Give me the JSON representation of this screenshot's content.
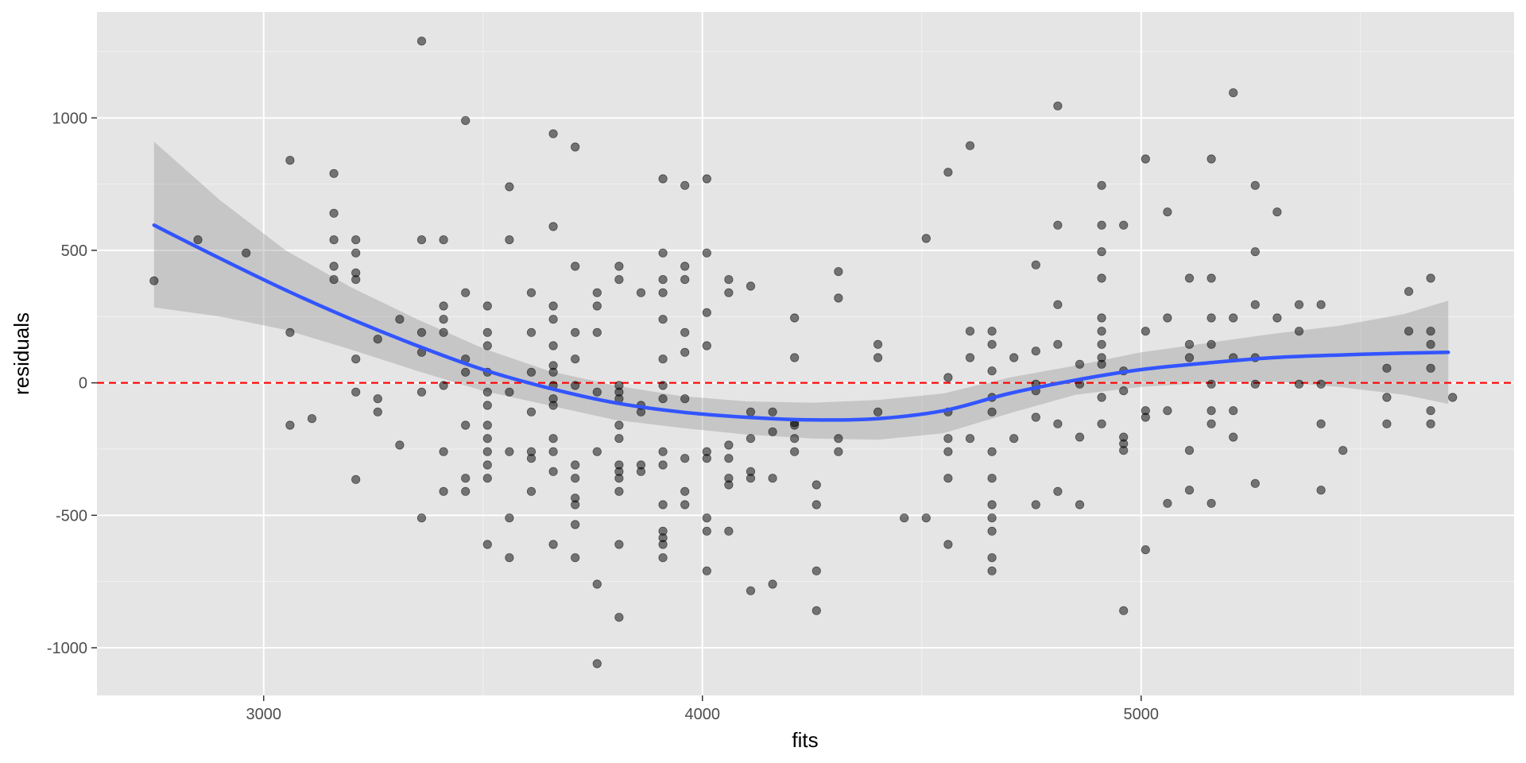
{
  "chart_data": {
    "type": "scatter",
    "xlabel": "fits",
    "ylabel": "residuals",
    "xlim": [
      2620,
      5850
    ],
    "ylim": [
      -1180,
      1400
    ],
    "x_ticks": [
      3000,
      4000,
      5000
    ],
    "x_tick_labels": [
      "3000",
      "4000",
      "5000"
    ],
    "y_ticks": [
      -1000,
      -500,
      0,
      500,
      1000
    ],
    "y_tick_labels": [
      "-1000",
      "-500",
      "0",
      "500",
      "1000"
    ],
    "grid": true,
    "reference_line": {
      "y": 0,
      "color": "#ff0000",
      "style": "dashed"
    },
    "points": [
      [
        2750,
        385
      ],
      [
        2850,
        540
      ],
      [
        2960,
        490
      ],
      [
        3060,
        840
      ],
      [
        3060,
        190
      ],
      [
        3060,
        -160
      ],
      [
        3110,
        -135
      ],
      [
        3160,
        790
      ],
      [
        3160,
        640
      ],
      [
        3160,
        540
      ],
      [
        3160,
        440
      ],
      [
        3160,
        390
      ],
      [
        3210,
        540
      ],
      [
        3210,
        490
      ],
      [
        3210,
        415
      ],
      [
        3210,
        390
      ],
      [
        3210,
        90
      ],
      [
        3210,
        -35
      ],
      [
        3210,
        -365
      ],
      [
        3260,
        165
      ],
      [
        3260,
        -60
      ],
      [
        3260,
        -110
      ],
      [
        3310,
        240
      ],
      [
        3310,
        -235
      ],
      [
        3360,
        1290
      ],
      [
        3360,
        540
      ],
      [
        3360,
        190
      ],
      [
        3360,
        115
      ],
      [
        3360,
        -35
      ],
      [
        3360,
        -510
      ],
      [
        3410,
        540
      ],
      [
        3410,
        290
      ],
      [
        3410,
        240
      ],
      [
        3410,
        190
      ],
      [
        3410,
        -10
      ],
      [
        3410,
        -260
      ],
      [
        3410,
        -410
      ],
      [
        3460,
        990
      ],
      [
        3460,
        340
      ],
      [
        3460,
        90
      ],
      [
        3460,
        40
      ],
      [
        3460,
        -160
      ],
      [
        3460,
        -360
      ],
      [
        3460,
        -410
      ],
      [
        3510,
        290
      ],
      [
        3510,
        190
      ],
      [
        3510,
        140
      ],
      [
        3510,
        40
      ],
      [
        3510,
        -35
      ],
      [
        3510,
        -85
      ],
      [
        3510,
        -160
      ],
      [
        3510,
        -210
      ],
      [
        3510,
        -260
      ],
      [
        3510,
        -310
      ],
      [
        3510,
        -360
      ],
      [
        3510,
        -610
      ],
      [
        3560,
        740
      ],
      [
        3560,
        540
      ],
      [
        3560,
        -35
      ],
      [
        3560,
        -260
      ],
      [
        3560,
        -510
      ],
      [
        3560,
        -660
      ],
      [
        3610,
        340
      ],
      [
        3610,
        190
      ],
      [
        3610,
        40
      ],
      [
        3610,
        -110
      ],
      [
        3610,
        -260
      ],
      [
        3610,
        -285
      ],
      [
        3610,
        -410
      ],
      [
        3660,
        940
      ],
      [
        3660,
        590
      ],
      [
        3660,
        290
      ],
      [
        3660,
        240
      ],
      [
        3660,
        140
      ],
      [
        3660,
        65
      ],
      [
        3660,
        40
      ],
      [
        3660,
        -10
      ],
      [
        3660,
        -60
      ],
      [
        3660,
        -85
      ],
      [
        3660,
        -210
      ],
      [
        3660,
        -260
      ],
      [
        3660,
        -335
      ],
      [
        3660,
        -610
      ],
      [
        3710,
        890
      ],
      [
        3710,
        440
      ],
      [
        3710,
        190
      ],
      [
        3710,
        90
      ],
      [
        3710,
        -10
      ],
      [
        3710,
        -310
      ],
      [
        3710,
        -360
      ],
      [
        3710,
        -435
      ],
      [
        3710,
        -460
      ],
      [
        3710,
        -535
      ],
      [
        3710,
        -660
      ],
      [
        3760,
        340
      ],
      [
        3760,
        290
      ],
      [
        3760,
        190
      ],
      [
        3760,
        -35
      ],
      [
        3760,
        -260
      ],
      [
        3760,
        -760
      ],
      [
        3760,
        -1060
      ],
      [
        3810,
        440
      ],
      [
        3810,
        390
      ],
      [
        3810,
        -10
      ],
      [
        3810,
        -35
      ],
      [
        3810,
        -60
      ],
      [
        3810,
        -160
      ],
      [
        3810,
        -210
      ],
      [
        3810,
        -310
      ],
      [
        3810,
        -335
      ],
      [
        3810,
        -360
      ],
      [
        3810,
        -410
      ],
      [
        3810,
        -610
      ],
      [
        3810,
        -885
      ],
      [
        3860,
        340
      ],
      [
        3860,
        -85
      ],
      [
        3860,
        -110
      ],
      [
        3860,
        -310
      ],
      [
        3860,
        -335
      ],
      [
        3910,
        770
      ],
      [
        3910,
        490
      ],
      [
        3910,
        390
      ],
      [
        3910,
        340
      ],
      [
        3910,
        240
      ],
      [
        3910,
        90
      ],
      [
        3910,
        -10
      ],
      [
        3910,
        -60
      ],
      [
        3910,
        -260
      ],
      [
        3910,
        -310
      ],
      [
        3910,
        -460
      ],
      [
        3910,
        -560
      ],
      [
        3910,
        -585
      ],
      [
        3910,
        -610
      ],
      [
        3910,
        -660
      ],
      [
        3960,
        745
      ],
      [
        3960,
        440
      ],
      [
        3960,
        390
      ],
      [
        3960,
        190
      ],
      [
        3960,
        115
      ],
      [
        3960,
        -60
      ],
      [
        3960,
        -285
      ],
      [
        3960,
        -410
      ],
      [
        3960,
        -460
      ],
      [
        4010,
        770
      ],
      [
        4010,
        490
      ],
      [
        4010,
        265
      ],
      [
        4010,
        140
      ],
      [
        4010,
        -260
      ],
      [
        4010,
        -285
      ],
      [
        4010,
        -510
      ],
      [
        4010,
        -560
      ],
      [
        4010,
        -710
      ],
      [
        4060,
        390
      ],
      [
        4060,
        340
      ],
      [
        4060,
        -235
      ],
      [
        4060,
        -285
      ],
      [
        4060,
        -360
      ],
      [
        4060,
        -385
      ],
      [
        4060,
        -560
      ],
      [
        4110,
        365
      ],
      [
        4110,
        -110
      ],
      [
        4110,
        -210
      ],
      [
        4110,
        -335
      ],
      [
        4110,
        -360
      ],
      [
        4110,
        -785
      ],
      [
        4160,
        -110
      ],
      [
        4160,
        -185
      ],
      [
        4160,
        -360
      ],
      [
        4160,
        -760
      ],
      [
        4210,
        245
      ],
      [
        4210,
        95
      ],
      [
        4210,
        -150
      ],
      [
        4210,
        -160
      ],
      [
        4210,
        -210
      ],
      [
        4210,
        -260
      ],
      [
        4260,
        -385
      ],
      [
        4260,
        -460
      ],
      [
        4260,
        -710
      ],
      [
        4260,
        -860
      ],
      [
        4310,
        420
      ],
      [
        4310,
        320
      ],
      [
        4310,
        -210
      ],
      [
        4310,
        -260
      ],
      [
        4400,
        145
      ],
      [
        4400,
        95
      ],
      [
        4400,
        -110
      ],
      [
        4460,
        -510
      ],
      [
        4510,
        545
      ],
      [
        4510,
        -510
      ],
      [
        4560,
        795
      ],
      [
        4560,
        20
      ],
      [
        4560,
        -110
      ],
      [
        4560,
        -210
      ],
      [
        4560,
        -260
      ],
      [
        4560,
        -360
      ],
      [
        4560,
        -610
      ],
      [
        4610,
        895
      ],
      [
        4610,
        195
      ],
      [
        4610,
        95
      ],
      [
        4610,
        -210
      ],
      [
        4660,
        195
      ],
      [
        4660,
        145
      ],
      [
        4660,
        45
      ],
      [
        4660,
        -55
      ],
      [
        4660,
        -110
      ],
      [
        4660,
        -260
      ],
      [
        4660,
        -360
      ],
      [
        4660,
        -460
      ],
      [
        4660,
        -510
      ],
      [
        4660,
        -560
      ],
      [
        4660,
        -660
      ],
      [
        4660,
        -710
      ],
      [
        4710,
        95
      ],
      [
        4710,
        -210
      ],
      [
        4760,
        445
      ],
      [
        4760,
        120
      ],
      [
        4760,
        -5
      ],
      [
        4760,
        -30
      ],
      [
        4760,
        -130
      ],
      [
        4760,
        -460
      ],
      [
        4810,
        1045
      ],
      [
        4810,
        595
      ],
      [
        4810,
        295
      ],
      [
        4810,
        145
      ],
      [
        4810,
        -155
      ],
      [
        4810,
        -410
      ],
      [
        4860,
        70
      ],
      [
        4860,
        -5
      ],
      [
        4860,
        -205
      ],
      [
        4860,
        -460
      ],
      [
        4910,
        745
      ],
      [
        4910,
        595
      ],
      [
        4910,
        495
      ],
      [
        4910,
        395
      ],
      [
        4910,
        245
      ],
      [
        4910,
        195
      ],
      [
        4910,
        145
      ],
      [
        4910,
        95
      ],
      [
        4910,
        70
      ],
      [
        4910,
        -55
      ],
      [
        4910,
        -155
      ],
      [
        4960,
        595
      ],
      [
        4960,
        45
      ],
      [
        4960,
        -30
      ],
      [
        4960,
        -205
      ],
      [
        4960,
        -230
      ],
      [
        4960,
        -255
      ],
      [
        4960,
        -860
      ],
      [
        5010,
        845
      ],
      [
        5010,
        195
      ],
      [
        5010,
        -105
      ],
      [
        5010,
        -130
      ],
      [
        5010,
        -630
      ],
      [
        5060,
        645
      ],
      [
        5060,
        245
      ],
      [
        5060,
        -105
      ],
      [
        5060,
        -455
      ],
      [
        5110,
        395
      ],
      [
        5110,
        145
      ],
      [
        5110,
        95
      ],
      [
        5110,
        -255
      ],
      [
        5110,
        -405
      ],
      [
        5160,
        845
      ],
      [
        5160,
        395
      ],
      [
        5160,
        245
      ],
      [
        5160,
        145
      ],
      [
        5160,
        -5
      ],
      [
        5160,
        -105
      ],
      [
        5160,
        -155
      ],
      [
        5160,
        -455
      ],
      [
        5210,
        1095
      ],
      [
        5210,
        245
      ],
      [
        5210,
        95
      ],
      [
        5210,
        -105
      ],
      [
        5210,
        -205
      ],
      [
        5260,
        745
      ],
      [
        5260,
        495
      ],
      [
        5260,
        295
      ],
      [
        5260,
        95
      ],
      [
        5260,
        -5
      ],
      [
        5260,
        -380
      ],
      [
        5310,
        645
      ],
      [
        5310,
        245
      ],
      [
        5360,
        295
      ],
      [
        5360,
        195
      ],
      [
        5360,
        -5
      ],
      [
        5410,
        295
      ],
      [
        5410,
        -5
      ],
      [
        5410,
        -155
      ],
      [
        5410,
        -405
      ],
      [
        5460,
        -255
      ],
      [
        5560,
        55
      ],
      [
        5560,
        -55
      ],
      [
        5560,
        -155
      ],
      [
        5610,
        345
      ],
      [
        5610,
        195
      ],
      [
        5660,
        395
      ],
      [
        5660,
        195
      ],
      [
        5660,
        145
      ],
      [
        5660,
        55
      ],
      [
        5660,
        -105
      ],
      [
        5660,
        -155
      ],
      [
        5710,
        -55
      ]
    ],
    "smooth_line": {
      "color": "#3355ff",
      "x": [
        2750,
        2900,
        3050,
        3200,
        3350,
        3500,
        3650,
        3800,
        3950,
        4100,
        4250,
        4400,
        4550,
        4700,
        4850,
        5000,
        5150,
        5300,
        5450,
        5600,
        5700
      ],
      "y": [
        595,
        470,
        350,
        240,
        140,
        50,
        -20,
        -75,
        -110,
        -130,
        -140,
        -135,
        -105,
        -40,
        10,
        50,
        75,
        95,
        105,
        112,
        115
      ],
      "ci_upper": [
        910,
        690,
        500,
        360,
        240,
        130,
        45,
        -10,
        -50,
        -70,
        -75,
        -65,
        -40,
        20,
        65,
        115,
        150,
        185,
        215,
        260,
        310
      ],
      "ci_lower": [
        285,
        250,
        200,
        125,
        45,
        -30,
        -85,
        -140,
        -170,
        -195,
        -210,
        -215,
        -190,
        -115,
        -45,
        -15,
        0,
        5,
        -15,
        -45,
        -80
      ]
    }
  }
}
